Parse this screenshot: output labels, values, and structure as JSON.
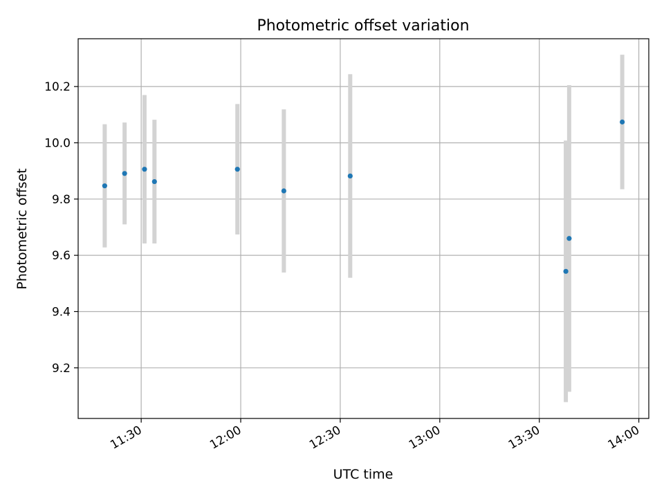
{
  "chart_data": {
    "type": "scatter",
    "title": "Photometric offset variation",
    "xlabel": "UTC time",
    "ylabel": "Photometric offset",
    "x_axis": {
      "kind": "time",
      "range": [
        "11:11",
        "14:03"
      ],
      "ticks": [
        "11:30",
        "12:00",
        "12:30",
        "13:00",
        "13:30",
        "14:00"
      ]
    },
    "y_axis": {
      "range": [
        9.02,
        10.37
      ],
      "ticks": [
        "9.2",
        "9.4",
        "9.6",
        "9.8",
        "10.0",
        "10.2"
      ]
    },
    "grid": true,
    "series": [
      {
        "marker_color": "#1f77b4",
        "errorbar_color": "#d3d3d3",
        "points": [
          {
            "x": "11:19",
            "y": 9.847,
            "ylow": 9.628,
            "yhigh": 10.066
          },
          {
            "x": "11:25",
            "y": 9.891,
            "ylow": 9.71,
            "yhigh": 10.072
          },
          {
            "x": "11:31",
            "y": 9.906,
            "ylow": 9.642,
            "yhigh": 10.17
          },
          {
            "x": "11:34",
            "y": 9.862,
            "ylow": 9.642,
            "yhigh": 10.082
          },
          {
            "x": "11:59",
            "y": 9.906,
            "ylow": 9.674,
            "yhigh": 10.138
          },
          {
            "x": "12:13",
            "y": 9.829,
            "ylow": 9.539,
            "yhigh": 10.119
          },
          {
            "x": "12:33",
            "y": 9.882,
            "ylow": 9.52,
            "yhigh": 10.244
          },
          {
            "x": "13:38",
            "y": 9.543,
            "ylow": 9.078,
            "yhigh": 10.008
          },
          {
            "x": "13:39",
            "y": 9.66,
            "ylow": 9.115,
            "yhigh": 10.205
          },
          {
            "x": "13:55",
            "y": 10.074,
            "ylow": 9.835,
            "yhigh": 10.313
          }
        ]
      }
    ]
  }
}
